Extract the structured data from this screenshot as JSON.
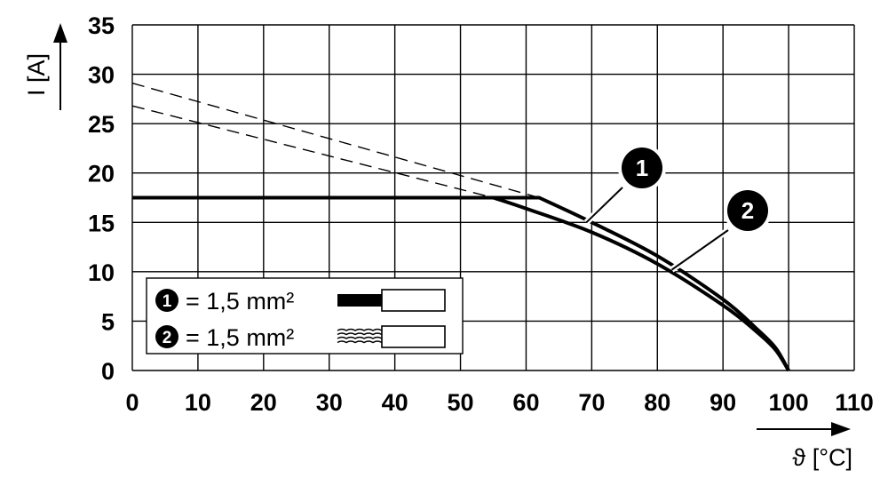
{
  "chart_data": {
    "type": "line",
    "xlabel": "ϑ [°C]",
    "ylabel": "I [A]",
    "xlim": [
      0,
      110
    ],
    "ylim": [
      0,
      35
    ],
    "x_ticks": [
      "0",
      "10",
      "20",
      "30",
      "40",
      "50",
      "60",
      "70",
      "80",
      "90",
      "100",
      "110"
    ],
    "y_ticks": [
      "0",
      "5",
      "10",
      "15",
      "20",
      "25",
      "30",
      "35"
    ],
    "grid": true,
    "legend_position": "bottom-left",
    "series": [
      {
        "name": "1,5 mm²",
        "badge": "1",
        "conductor": "solid",
        "x": [
          0,
          62,
          70,
          80,
          90,
          95,
          98,
          100
        ],
        "y": [
          17.5,
          17.5,
          15.0,
          11.6,
          7.2,
          4.3,
          2.3,
          0
        ],
        "extrapolation": {
          "x": [
            0,
            62
          ],
          "y": [
            29.1,
            17.5
          ]
        }
      },
      {
        "name": "1,5 mm²",
        "badge": "2",
        "conductor": "stranded",
        "x": [
          0,
          55,
          60,
          70,
          80,
          90,
          95,
          98,
          100
        ],
        "y": [
          17.5,
          17.5,
          16.4,
          14.0,
          10.8,
          6.6,
          4.0,
          2.1,
          0
        ],
        "extrapolation": {
          "x": [
            0,
            55
          ],
          "y": [
            26.8,
            17.5
          ]
        }
      }
    ],
    "annotations": [
      {
        "label": "1",
        "x": 70,
        "y": 15.0
      },
      {
        "label": "2",
        "x": 83,
        "y": 10.2
      }
    ]
  }
}
